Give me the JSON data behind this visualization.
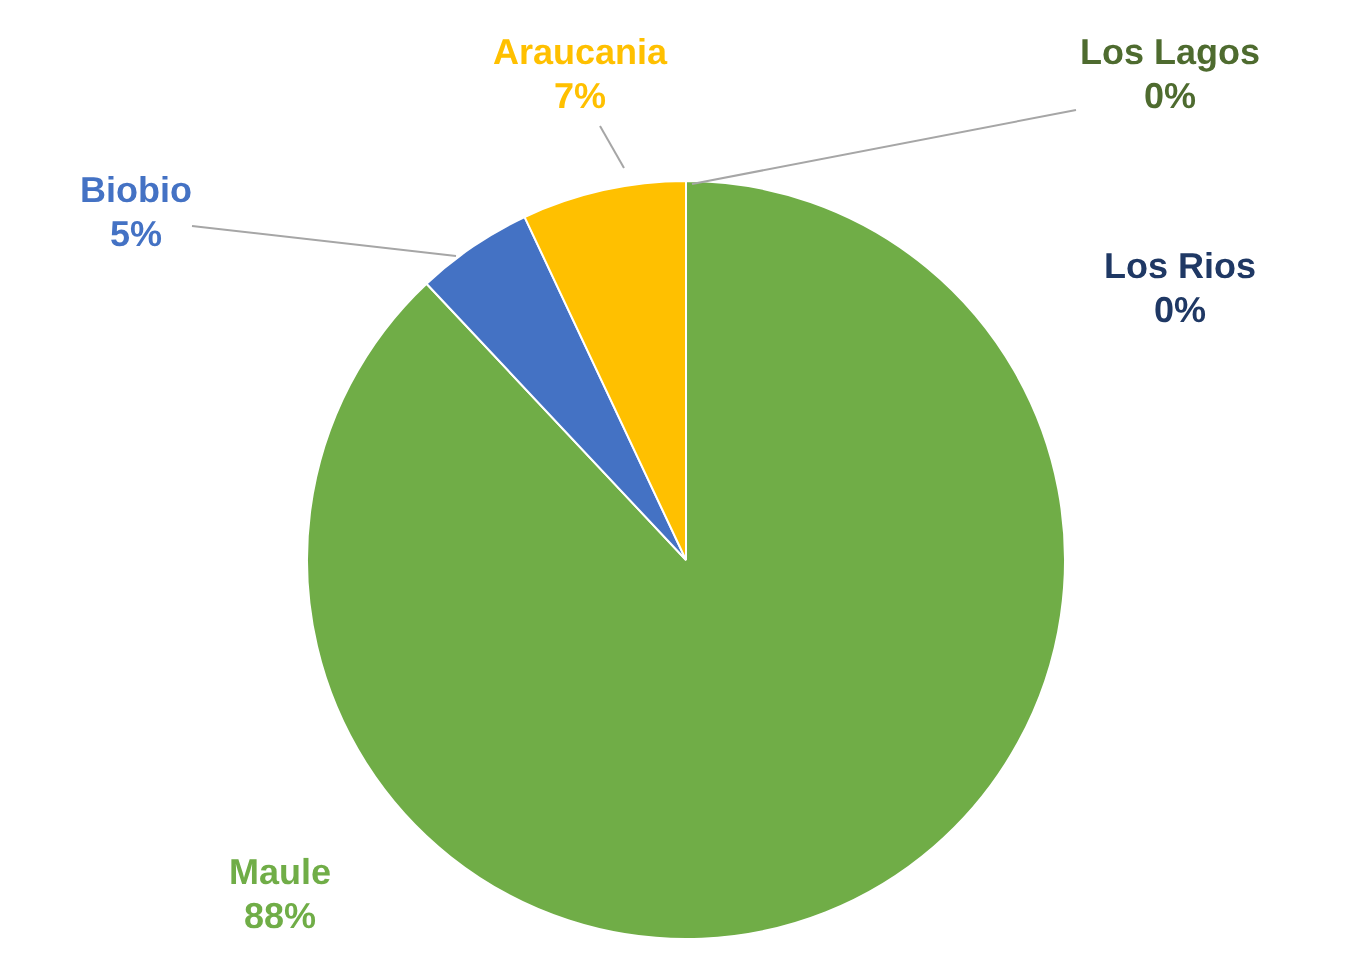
{
  "chart_data": {
    "type": "pie",
    "categories": [
      "Maule",
      "Biobio",
      "Araucania",
      "Los Lagos",
      "Los Rios"
    ],
    "values": [
      88,
      5,
      7,
      0,
      0
    ],
    "value_labels": [
      "88%",
      "5%",
      "7%",
      "0%",
      "0%"
    ],
    "colors": [
      "#70ad47",
      "#4472c4",
      "#ffc000",
      "#4e6b2f",
      "#1f3864"
    ],
    "legend": false
  }
}
